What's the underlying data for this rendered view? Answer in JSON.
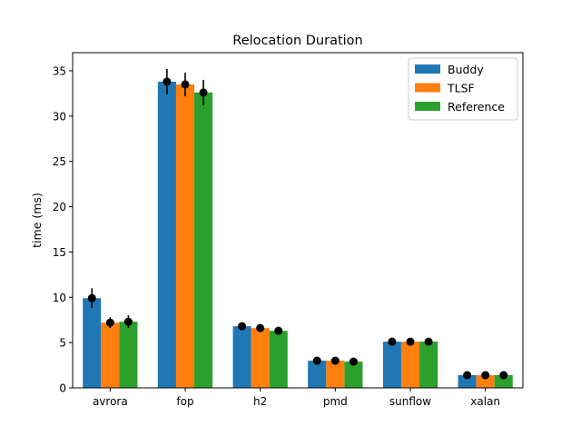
{
  "chart_data": {
    "type": "bar",
    "title": "Relocation Duration",
    "xlabel": "",
    "ylabel": "time (ms)",
    "ylim": [
      0,
      37
    ],
    "yticks": [
      0,
      5,
      10,
      15,
      20,
      25,
      30,
      35
    ],
    "categories": [
      "avrora",
      "fop",
      "h2",
      "pmd",
      "sunflow",
      "xalan"
    ],
    "legend_position": "top-right",
    "grid": false,
    "series": [
      {
        "name": "Buddy",
        "color": "#1f77b4",
        "values": [
          9.9,
          33.8,
          6.8,
          3.0,
          5.1,
          1.4
        ],
        "errors": [
          1.1,
          1.4,
          0.2,
          0.1,
          0.1,
          0.05
        ]
      },
      {
        "name": "TLSF",
        "color": "#ff7f0e",
        "values": [
          7.2,
          33.5,
          6.6,
          3.0,
          5.1,
          1.4
        ],
        "errors": [
          0.6,
          1.3,
          0.2,
          0.1,
          0.1,
          0.05
        ]
      },
      {
        "name": "Reference",
        "color": "#2ca02c",
        "values": [
          7.3,
          32.6,
          6.3,
          2.9,
          5.1,
          1.4
        ],
        "errors": [
          0.7,
          1.4,
          0.2,
          0.1,
          0.1,
          0.05
        ]
      }
    ]
  }
}
